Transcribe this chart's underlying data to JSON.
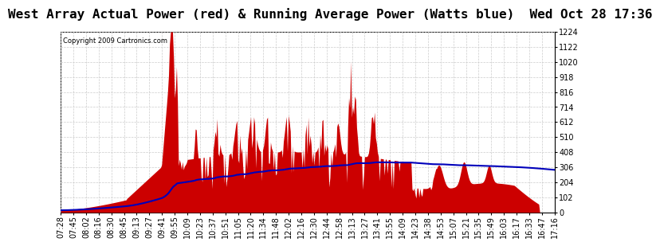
{
  "title": "West Array Actual Power (red) & Running Average Power (Watts blue)  Wed Oct 28 17:36",
  "copyright": "Copyright 2009 Cartronics.com",
  "y_ticks": [
    0.0,
    102.0,
    204.1,
    306.1,
    408.2,
    510.2,
    612.2,
    714.3,
    816.3,
    918.3,
    1020.4,
    1122.4,
    1224.5
  ],
  "x_labels": [
    "07:28",
    "07:45",
    "08:02",
    "08:16",
    "08:30",
    "08:45",
    "09:13",
    "09:27",
    "09:41",
    "09:55",
    "10:09",
    "10:23",
    "10:37",
    "10:51",
    "11:05",
    "11:20",
    "11:34",
    "11:48",
    "12:02",
    "12:16",
    "12:30",
    "12:44",
    "12:58",
    "13:13",
    "13:27",
    "13:41",
    "13:55",
    "14:09",
    "14:23",
    "14:38",
    "14:53",
    "15:07",
    "15:21",
    "15:35",
    "15:49",
    "16:03",
    "16:17",
    "16:33",
    "16:47",
    "17:16"
  ],
  "background_color": "#ffffff",
  "plot_bg_color": "#ffffff",
  "grid_color": "#cccccc",
  "red_color": "#cc0000",
  "blue_color": "#0000bb",
  "title_fontsize": 11.5,
  "tick_fontsize": 7.0,
  "ymax": 1224.5,
  "total_hours": 9.8
}
